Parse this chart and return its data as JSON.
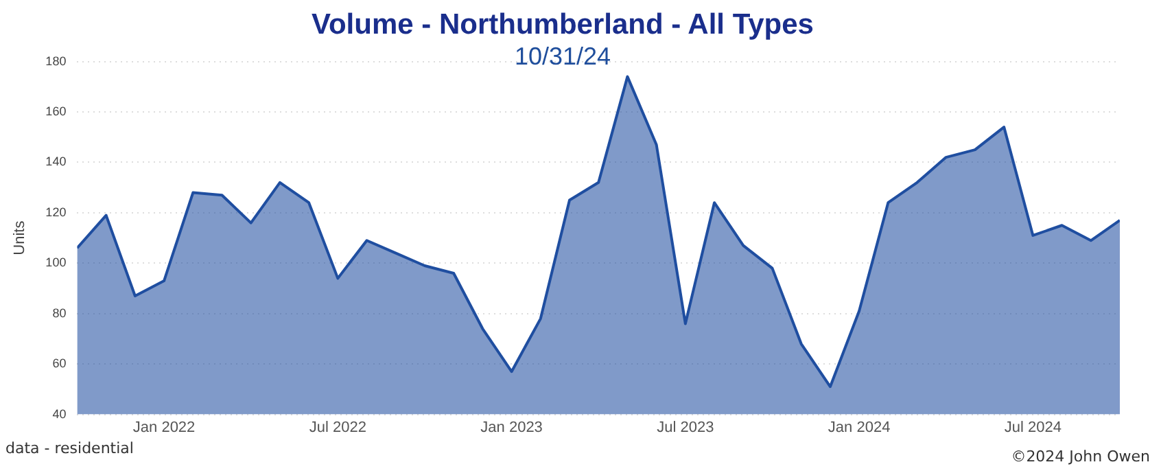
{
  "chart_data": {
    "type": "area",
    "title": "Volume - Northumberland - All Types",
    "subtitle": "10/31/24",
    "ylabel": "Units",
    "x": [
      "2021-10",
      "2021-11",
      "2021-12",
      "2022-01",
      "2022-02",
      "2022-03",
      "2022-04",
      "2022-05",
      "2022-06",
      "2022-07",
      "2022-08",
      "2022-09",
      "2022-10",
      "2022-11",
      "2022-12",
      "2023-01",
      "2023-02",
      "2023-03",
      "2023-04",
      "2023-05",
      "2023-06",
      "2023-07",
      "2023-08",
      "2023-09",
      "2023-10",
      "2023-11",
      "2023-12",
      "2024-01",
      "2024-02",
      "2024-03",
      "2024-04",
      "2024-05",
      "2024-06",
      "2024-07",
      "2024-08",
      "2024-09",
      "2024-10"
    ],
    "series": [
      {
        "color": "#1f4ea0",
        "values": [
          106,
          119,
          87,
          93,
          128,
          127,
          116,
          132,
          124,
          94,
          109,
          104,
          99,
          96,
          74,
          57,
          78,
          125,
          132,
          174,
          147,
          76,
          124,
          107,
          98,
          68,
          51,
          81,
          124,
          132,
          142,
          145,
          154,
          111,
          115,
          109,
          117
        ]
      }
    ],
    "xlim": [
      "2021-10",
      "2024-10"
    ],
    "xticks": [
      {
        "value": "2022-01",
        "label": "Jan 2022"
      },
      {
        "value": "2022-07",
        "label": "Jul 2022"
      },
      {
        "value": "2023-01",
        "label": "Jan 2023"
      },
      {
        "value": "2023-07",
        "label": "Jul 2023"
      },
      {
        "value": "2024-01",
        "label": "Jan 2024"
      },
      {
        "value": "2024-07",
        "label": "Jul 2024"
      }
    ],
    "ylim": [
      40,
      180
    ],
    "yticks": [
      40,
      60,
      80,
      100,
      120,
      140,
      160,
      180
    ],
    "grid": "y",
    "legend": false,
    "marker": "none",
    "line_style": "solid",
    "annotations": [
      "data - residential",
      "©2024 John Owen"
    ]
  }
}
